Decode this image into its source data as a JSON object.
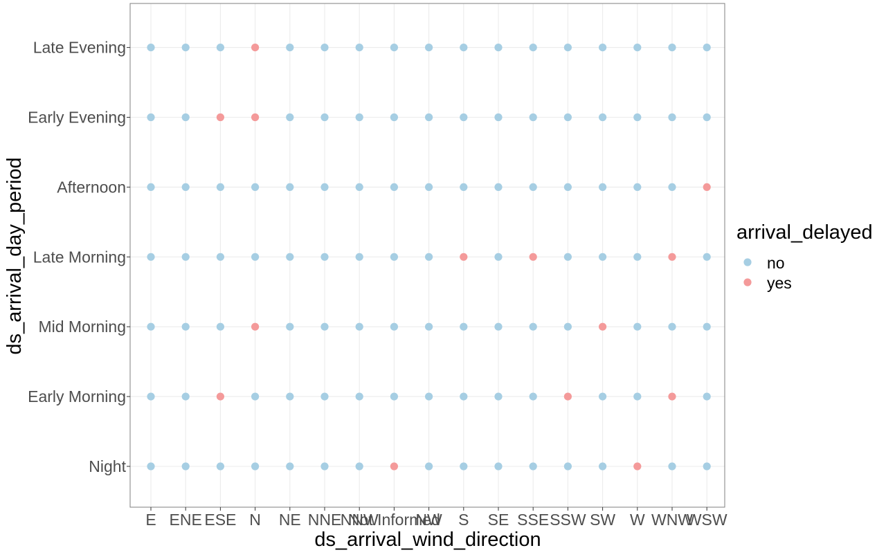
{
  "chart_data": {
    "type": "scatter",
    "title": "",
    "xlabel": "ds_arrival_wind_direction",
    "ylabel": "ds_arrival_day_period",
    "x_categories": [
      "E",
      "ENE",
      "ESE",
      "N",
      "NE",
      "NNE",
      "NNW",
      "Not Informed",
      "NW",
      "S",
      "SE",
      "SSE",
      "SSW",
      "SW",
      "W",
      "WNW",
      "WSW"
    ],
    "y_categories": [
      "Night",
      "Early Morning",
      "Mid Morning",
      "Late Morning",
      "Afternoon",
      "Early Evening",
      "Late Evening"
    ],
    "grid": true,
    "legend": {
      "title": "arrival_delayed",
      "placement": "right",
      "entries": [
        {
          "name": "no",
          "color": "#a6cee3"
        },
        {
          "name": "yes",
          "color": "#f49a9a"
        }
      ]
    },
    "series": [
      {
        "name": "no",
        "color": "#a6cee3",
        "points": [
          [
            "E",
            "Night"
          ],
          [
            "E",
            "Early Morning"
          ],
          [
            "E",
            "Mid Morning"
          ],
          [
            "E",
            "Late Morning"
          ],
          [
            "E",
            "Afternoon"
          ],
          [
            "E",
            "Early Evening"
          ],
          [
            "E",
            "Late Evening"
          ],
          [
            "ENE",
            "Night"
          ],
          [
            "ENE",
            "Early Morning"
          ],
          [
            "ENE",
            "Mid Morning"
          ],
          [
            "ENE",
            "Late Morning"
          ],
          [
            "ENE",
            "Afternoon"
          ],
          [
            "ENE",
            "Early Evening"
          ],
          [
            "ENE",
            "Late Evening"
          ],
          [
            "ESE",
            "Night"
          ],
          [
            "ESE",
            "Mid Morning"
          ],
          [
            "ESE",
            "Late Morning"
          ],
          [
            "ESE",
            "Afternoon"
          ],
          [
            "ESE",
            "Late Evening"
          ],
          [
            "N",
            "Night"
          ],
          [
            "N",
            "Early Morning"
          ],
          [
            "N",
            "Late Morning"
          ],
          [
            "N",
            "Afternoon"
          ],
          [
            "NE",
            "Night"
          ],
          [
            "NE",
            "Early Morning"
          ],
          [
            "NE",
            "Mid Morning"
          ],
          [
            "NE",
            "Late Morning"
          ],
          [
            "NE",
            "Afternoon"
          ],
          [
            "NE",
            "Early Evening"
          ],
          [
            "NE",
            "Late Evening"
          ],
          [
            "NNE",
            "Night"
          ],
          [
            "NNE",
            "Early Morning"
          ],
          [
            "NNE",
            "Mid Morning"
          ],
          [
            "NNE",
            "Late Morning"
          ],
          [
            "NNE",
            "Afternoon"
          ],
          [
            "NNE",
            "Early Evening"
          ],
          [
            "NNE",
            "Late Evening"
          ],
          [
            "NNW",
            "Night"
          ],
          [
            "NNW",
            "Early Morning"
          ],
          [
            "NNW",
            "Mid Morning"
          ],
          [
            "NNW",
            "Late Morning"
          ],
          [
            "NNW",
            "Afternoon"
          ],
          [
            "NNW",
            "Early Evening"
          ],
          [
            "NNW",
            "Late Evening"
          ],
          [
            "Not Informed",
            "Early Morning"
          ],
          [
            "Not Informed",
            "Mid Morning"
          ],
          [
            "Not Informed",
            "Late Morning"
          ],
          [
            "Not Informed",
            "Afternoon"
          ],
          [
            "Not Informed",
            "Early Evening"
          ],
          [
            "Not Informed",
            "Late Evening"
          ],
          [
            "NW",
            "Night"
          ],
          [
            "NW",
            "Early Morning"
          ],
          [
            "NW",
            "Mid Morning"
          ],
          [
            "NW",
            "Late Morning"
          ],
          [
            "NW",
            "Afternoon"
          ],
          [
            "NW",
            "Early Evening"
          ],
          [
            "NW",
            "Late Evening"
          ],
          [
            "S",
            "Night"
          ],
          [
            "S",
            "Early Morning"
          ],
          [
            "S",
            "Mid Morning"
          ],
          [
            "S",
            "Afternoon"
          ],
          [
            "S",
            "Early Evening"
          ],
          [
            "S",
            "Late Evening"
          ],
          [
            "SE",
            "Night"
          ],
          [
            "SE",
            "Early Morning"
          ],
          [
            "SE",
            "Mid Morning"
          ],
          [
            "SE",
            "Late Morning"
          ],
          [
            "SE",
            "Afternoon"
          ],
          [
            "SE",
            "Early Evening"
          ],
          [
            "SE",
            "Late Evening"
          ],
          [
            "SSE",
            "Night"
          ],
          [
            "SSE",
            "Early Morning"
          ],
          [
            "SSE",
            "Mid Morning"
          ],
          [
            "SSE",
            "Afternoon"
          ],
          [
            "SSE",
            "Early Evening"
          ],
          [
            "SSE",
            "Late Evening"
          ],
          [
            "SSW",
            "Night"
          ],
          [
            "SSW",
            "Mid Morning"
          ],
          [
            "SSW",
            "Late Morning"
          ],
          [
            "SSW",
            "Afternoon"
          ],
          [
            "SSW",
            "Early Evening"
          ],
          [
            "SSW",
            "Late Evening"
          ],
          [
            "SW",
            "Night"
          ],
          [
            "SW",
            "Early Morning"
          ],
          [
            "SW",
            "Late Morning"
          ],
          [
            "SW",
            "Afternoon"
          ],
          [
            "SW",
            "Early Evening"
          ],
          [
            "SW",
            "Late Evening"
          ],
          [
            "W",
            "Early Morning"
          ],
          [
            "W",
            "Mid Morning"
          ],
          [
            "W",
            "Late Morning"
          ],
          [
            "W",
            "Afternoon"
          ],
          [
            "W",
            "Early Evening"
          ],
          [
            "W",
            "Late Evening"
          ],
          [
            "WNW",
            "Night"
          ],
          [
            "WNW",
            "Mid Morning"
          ],
          [
            "WNW",
            "Afternoon"
          ],
          [
            "WNW",
            "Early Evening"
          ],
          [
            "WNW",
            "Late Evening"
          ],
          [
            "WSW",
            "Night"
          ],
          [
            "WSW",
            "Early Morning"
          ],
          [
            "WSW",
            "Mid Morning"
          ],
          [
            "WSW",
            "Late Morning"
          ],
          [
            "WSW",
            "Early Evening"
          ],
          [
            "WSW",
            "Late Evening"
          ]
        ]
      },
      {
        "name": "yes",
        "color": "#f49a9a",
        "points": [
          [
            "ESE",
            "Early Morning"
          ],
          [
            "ESE",
            "Early Evening"
          ],
          [
            "N",
            "Mid Morning"
          ],
          [
            "N",
            "Early Evening"
          ],
          [
            "N",
            "Late Evening"
          ],
          [
            "Not Informed",
            "Night"
          ],
          [
            "S",
            "Late Morning"
          ],
          [
            "SSE",
            "Late Morning"
          ],
          [
            "SSW",
            "Early Morning"
          ],
          [
            "SW",
            "Mid Morning"
          ],
          [
            "W",
            "Night"
          ],
          [
            "WNW",
            "Early Morning"
          ],
          [
            "WNW",
            "Late Morning"
          ],
          [
            "WSW",
            "Afternoon"
          ]
        ]
      }
    ]
  }
}
